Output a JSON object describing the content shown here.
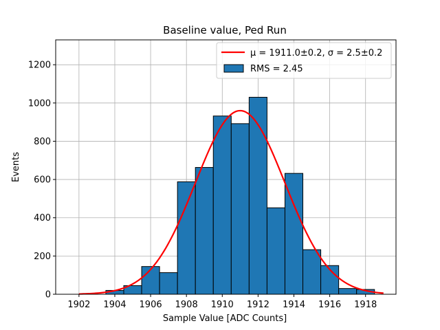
{
  "chart_data": {
    "type": "bar",
    "title": "Baseline value, Ped Run",
    "xlabel": "Sample Value [ADC Counts]",
    "ylabel": "Events",
    "xlim": [
      1900.7,
      1919.7
    ],
    "ylim": [
      0,
      1330
    ],
    "grid": true,
    "legend_position": "top-right",
    "xticks": [
      1902,
      1904,
      1906,
      1908,
      1910,
      1912,
      1914,
      1916,
      1918
    ],
    "yticks": [
      0,
      200,
      400,
      600,
      800,
      1000,
      1200
    ],
    "histogram": {
      "name": "RMS = 2.45",
      "bin_width": 1.0,
      "bin_left_edges": [
        1903.5,
        1904.5,
        1905.5,
        1906.5,
        1907.5,
        1908.5,
        1909.5,
        1910.5,
        1911.5,
        1912.5,
        1913.5,
        1914.5,
        1915.5,
        1916.5,
        1917.5
      ],
      "counts": [
        20,
        45,
        145,
        113,
        588,
        663,
        932,
        892,
        1030,
        452,
        632,
        233,
        150,
        30,
        25
      ],
      "color": "#1f77b4"
    },
    "fit": {
      "name": "μ = 1911.0±0.2, σ = 2.5±0.2",
      "type": "gaussian",
      "mu": 1911.0,
      "sigma": 2.5,
      "amplitude": 960,
      "x_range": [
        1902,
        1919
      ],
      "color": "#ff0000"
    }
  }
}
